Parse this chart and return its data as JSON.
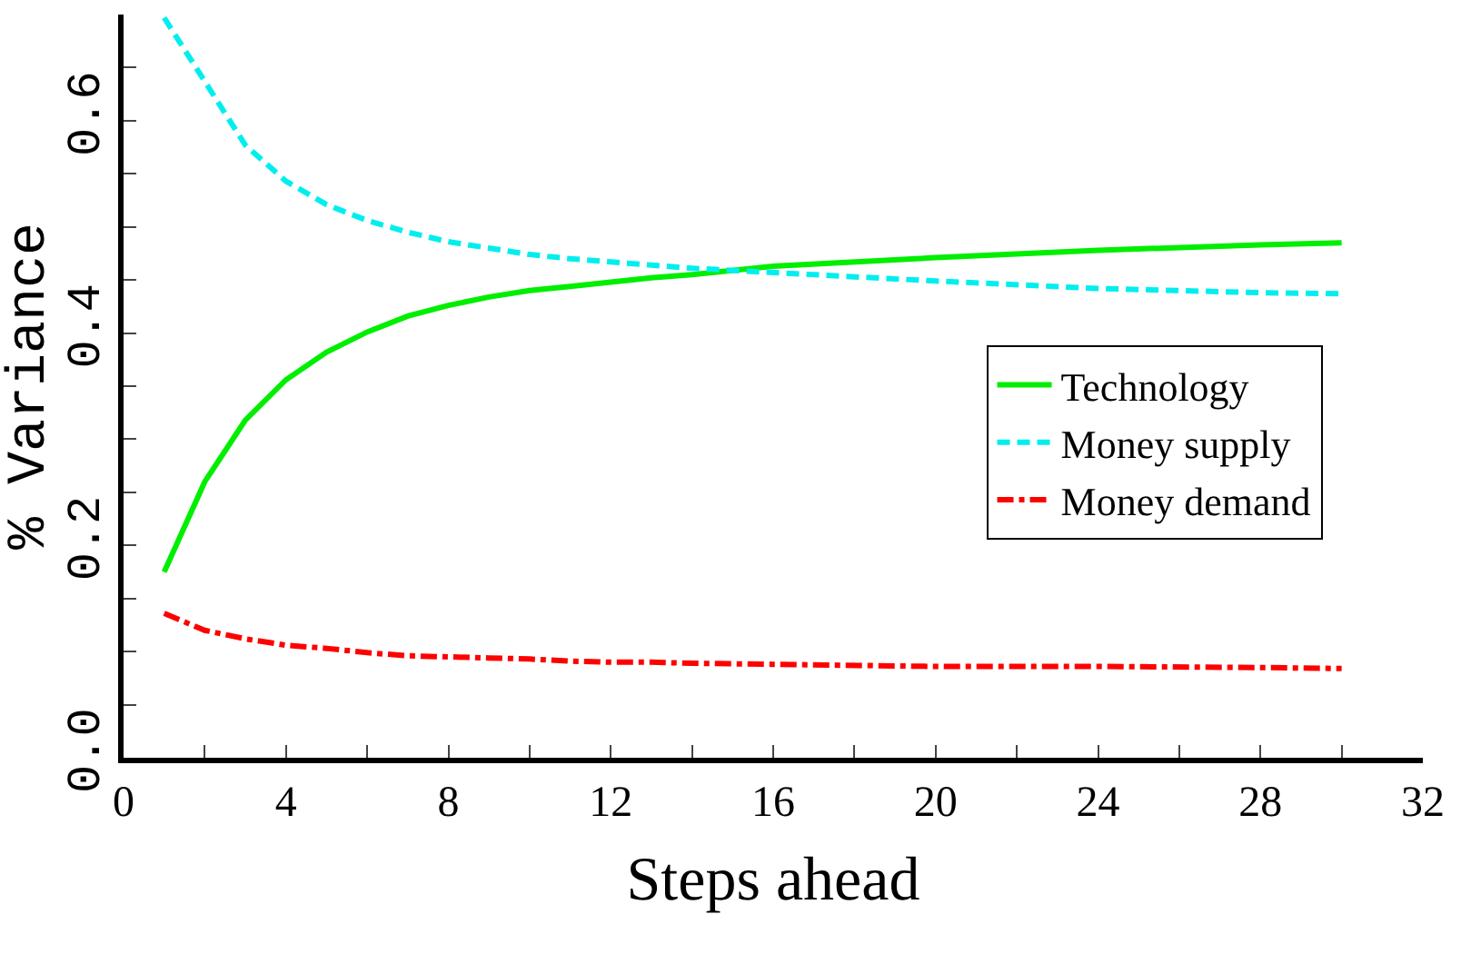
{
  "chart_data": {
    "type": "line",
    "xlabel": "Steps ahead",
    "ylabel": "% Variance",
    "x": [
      1,
      2,
      3,
      4,
      5,
      6,
      7,
      8,
      9,
      10,
      11,
      12,
      13,
      14,
      16,
      20,
      24,
      28,
      30
    ],
    "series": [
      {
        "name": "Technology",
        "color": "#00ee00",
        "line_style": "solid",
        "values": [
          0.175,
          0.26,
          0.318,
          0.356,
          0.382,
          0.401,
          0.416,
          0.426,
          0.434,
          0.44,
          0.444,
          0.448,
          0.452,
          0.455,
          0.463,
          0.471,
          0.478,
          0.483,
          0.485
        ]
      },
      {
        "name": "Money supply",
        "color": "#00eeee",
        "line_style": "dashed",
        "values": [
          0.697,
          0.637,
          0.577,
          0.543,
          0.521,
          0.506,
          0.495,
          0.486,
          0.48,
          0.474,
          0.47,
          0.467,
          0.464,
          0.461,
          0.457,
          0.449,
          0.442,
          0.438,
          0.437
        ]
      },
      {
        "name": "Money demand",
        "color": "#ff0000",
        "line_style": "dashdot",
        "values": [
          0.136,
          0.12,
          0.112,
          0.106,
          0.103,
          0.099,
          0.096,
          0.095,
          0.094,
          0.093,
          0.091,
          0.09,
          0.09,
          0.089,
          0.088,
          0.086,
          0.086,
          0.085,
          0.084
        ]
      }
    ],
    "xlim": [
      0,
      32
    ],
    "xticks": [
      0,
      {
        "value": 2,
        "label": null
      },
      4,
      {
        "value": 6,
        "label": null
      },
      8,
      {
        "value": 10,
        "label": null
      },
      12,
      {
        "value": 14,
        "label": null
      },
      16,
      {
        "value": 18,
        "label": null
      },
      20,
      {
        "value": 22,
        "label": null
      },
      24,
      {
        "value": 26,
        "label": null
      },
      28,
      {
        "value": 30,
        "label": null
      },
      32
    ],
    "ylim": [
      0,
      0.7
    ],
    "yticks": [
      {
        "value": 0,
        "label": "0.0"
      },
      {
        "value": 0.05,
        "label": null
      },
      {
        "value": 0.1,
        "label": null
      },
      {
        "value": 0.15,
        "label": null
      },
      {
        "value": 0.2,
        "label": "0.2"
      },
      {
        "value": 0.25,
        "label": null
      },
      {
        "value": 0.3,
        "label": null
      },
      {
        "value": 0.35,
        "label": null
      },
      {
        "value": 0.4,
        "label": "0.4"
      },
      {
        "value": 0.45,
        "label": null
      },
      {
        "value": 0.5,
        "label": null
      },
      {
        "value": 0.55,
        "label": null
      },
      {
        "value": 0.6,
        "label": "0.6"
      },
      {
        "value": 0.65,
        "label": null
      }
    ],
    "grid": false,
    "legend": "right",
    "marker": "none"
  }
}
